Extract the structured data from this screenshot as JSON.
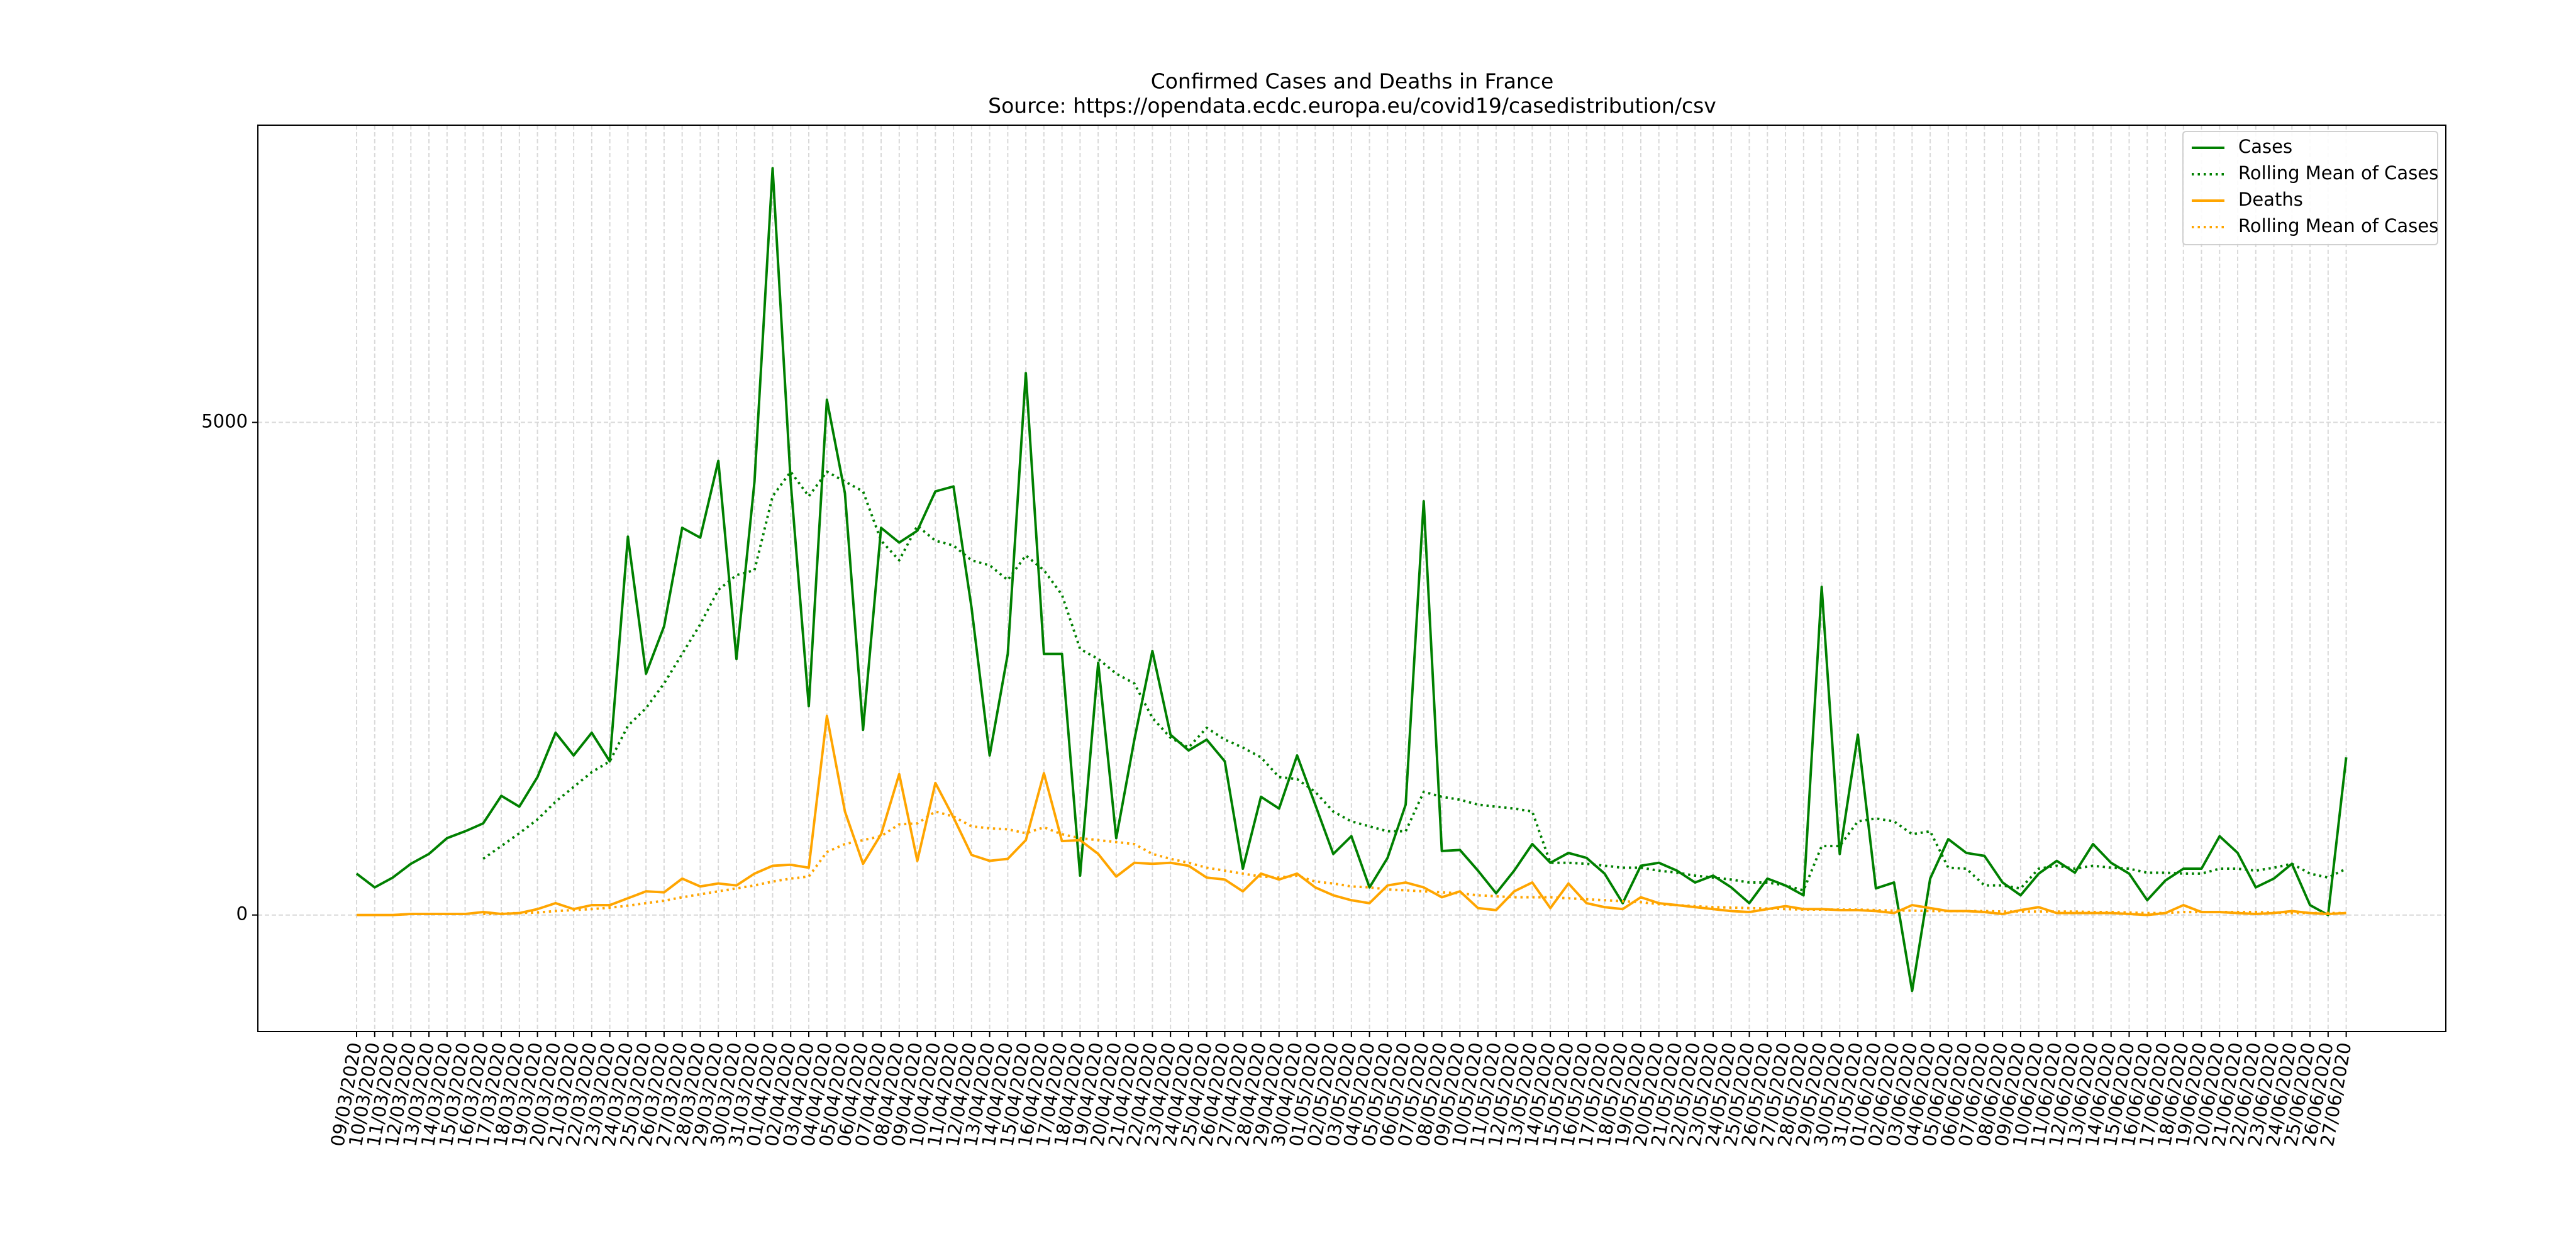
{
  "chart_data": {
    "type": "line",
    "title": "Confirmed Cases and Deaths in France",
    "subtitle": "Source: https://opendata.ecdc.europa.eu/covid19/casedistribution/csv",
    "categories": [
      "09/03/2020",
      "10/03/2020",
      "11/03/2020",
      "12/03/2020",
      "13/03/2020",
      "14/03/2020",
      "15/03/2020",
      "16/03/2020",
      "17/03/2020",
      "18/03/2020",
      "19/03/2020",
      "20/03/2020",
      "21/03/2020",
      "22/03/2020",
      "23/03/2020",
      "24/03/2020",
      "25/03/2020",
      "26/03/2020",
      "27/03/2020",
      "28/03/2020",
      "29/03/2020",
      "30/03/2020",
      "31/03/2020",
      "01/04/2020",
      "02/04/2020",
      "03/04/2020",
      "04/04/2020",
      "05/04/2020",
      "06/04/2020",
      "07/04/2020",
      "08/04/2020",
      "09/04/2020",
      "10/04/2020",
      "11/04/2020",
      "12/04/2020",
      "13/04/2020",
      "14/04/2020",
      "15/04/2020",
      "16/04/2020",
      "17/04/2020",
      "18/04/2020",
      "19/04/2020",
      "20/04/2020",
      "21/04/2020",
      "22/04/2020",
      "23/04/2020",
      "24/04/2020",
      "25/04/2020",
      "26/04/2020",
      "27/04/2020",
      "28/04/2020",
      "29/04/2020",
      "30/04/2020",
      "01/05/2020",
      "02/05/2020",
      "03/05/2020",
      "04/05/2020",
      "05/05/2020",
      "06/05/2020",
      "07/05/2020",
      "08/05/2020",
      "09/05/2020",
      "10/05/2020",
      "11/05/2020",
      "12/05/2020",
      "13/05/2020",
      "14/05/2020",
      "15/05/2020",
      "16/05/2020",
      "17/05/2020",
      "18/05/2020",
      "19/05/2020",
      "20/05/2020",
      "21/05/2020",
      "22/05/2020",
      "23/05/2020",
      "24/05/2020",
      "25/05/2020",
      "26/05/2020",
      "27/05/2020",
      "28/05/2020",
      "29/05/2020",
      "30/05/2020",
      "31/05/2020",
      "01/06/2020",
      "02/06/2020",
      "03/06/2020",
      "04/06/2020",
      "05/06/2020",
      "06/06/2020",
      "07/06/2020",
      "08/06/2020",
      "09/06/2020",
      "10/06/2020",
      "11/06/2020",
      "12/06/2020",
      "13/06/2020",
      "14/06/2020",
      "15/06/2020",
      "16/06/2020",
      "17/06/2020",
      "18/06/2020",
      "19/06/2020",
      "20/06/2020",
      "21/06/2020",
      "22/06/2020",
      "23/06/2020",
      "24/06/2020",
      "25/06/2020",
      "26/06/2020",
      "27/06/2020"
    ],
    "series": [
      {
        "name": "Cases",
        "color": "#008000",
        "linestyle": "solid",
        "values": [
          420,
          280,
          380,
          520,
          620,
          780,
          850,
          930,
          1210,
          1100,
          1400,
          1850,
          1620,
          1850,
          1560,
          3840,
          2450,
          2930,
          3930,
          3830,
          4610,
          2600,
          4400,
          7580,
          4400,
          2120,
          5230,
          4280,
          1880,
          3930,
          3780,
          3900,
          4300,
          4350,
          3120,
          1620,
          2650,
          5500,
          2650,
          2650,
          400,
          2560,
          780,
          1780,
          2680,
          1830,
          1670,
          1780,
          1560,
          470,
          1200,
          1080,
          1620,
          1120,
          620,
          800,
          280,
          580,
          1120,
          4200,
          650,
          660,
          450,
          220,
          450,
          720,
          530,
          630,
          580,
          420,
          120,
          500,
          530,
          450,
          330,
          400,
          280,
          120,
          370,
          300,
          200,
          3330,
          620,
          1830,
          270,
          330,
          -770,
          370,
          770,
          630,
          600,
          330,
          200,
          420,
          550,
          430,
          720,
          530,
          420,
          150,
          350,
          470,
          470,
          800,
          630,
          280,
          370,
          520,
          100,
          0,
          1600
        ]
      },
      {
        "name": "Rolling Mean of Cases",
        "color": "#008000",
        "linestyle": "dotted",
        "values": [
          null,
          null,
          null,
          null,
          null,
          null,
          null,
          570,
          700,
          830,
          970,
          1150,
          1300,
          1450,
          1560,
          1920,
          2100,
          2350,
          2650,
          2950,
          3300,
          3450,
          3500,
          4250,
          4500,
          4250,
          4500,
          4400,
          4300,
          3800,
          3600,
          3950,
          3800,
          3750,
          3600,
          3550,
          3400,
          3650,
          3500,
          3250,
          2700,
          2600,
          2450,
          2350,
          2000,
          1800,
          1700,
          1900,
          1780,
          1700,
          1600,
          1400,
          1380,
          1250,
          1050,
          950,
          900,
          850,
          850,
          1250,
          1200,
          1170,
          1120,
          1100,
          1080,
          1050,
          530,
          530,
          520,
          500,
          480,
          480,
          450,
          430,
          400,
          380,
          360,
          330,
          330,
          300,
          250,
          700,
          700,
          950,
          980,
          950,
          820,
          850,
          480,
          470,
          300,
          300,
          270,
          470,
          500,
          470,
          500,
          480,
          470,
          430,
          430,
          420,
          420,
          470,
          470,
          450,
          480,
          520,
          420,
          380,
          470
        ]
      },
      {
        "name": "Deaths",
        "color": "#ffa500",
        "linestyle": "solid",
        "values": [
          0,
          0,
          0,
          10,
          10,
          10,
          10,
          30,
          10,
          20,
          60,
          120,
          60,
          100,
          100,
          170,
          240,
          230,
          370,
          290,
          320,
          300,
          420,
          500,
          510,
          480,
          2020,
          1050,
          520,
          820,
          1430,
          550,
          1340,
          990,
          610,
          550,
          570,
          760,
          1440,
          750,
          760,
          620,
          390,
          530,
          520,
          530,
          500,
          380,
          360,
          240,
          420,
          360,
          420,
          280,
          200,
          150,
          120,
          300,
          330,
          280,
          180,
          240,
          70,
          50,
          240,
          330,
          70,
          320,
          120,
          80,
          60,
          180,
          120,
          100,
          80,
          60,
          40,
          30,
          60,
          90,
          60,
          60,
          50,
          50,
          40,
          20,
          100,
          70,
          40,
          40,
          30,
          10,
          50,
          80,
          20,
          20,
          20,
          20,
          10,
          0,
          20,
          100,
          30,
          30,
          20,
          10,
          20,
          40,
          20,
          10,
          20
        ]
      },
      {
        "name": "Rolling Mean of Cases",
        "color": "#ffa500",
        "linestyle": "dotted",
        "values": [
          null,
          null,
          null,
          null,
          null,
          null,
          null,
          10,
          15,
          20,
          25,
          40,
          50,
          60,
          75,
          95,
          120,
          145,
          180,
          210,
          240,
          270,
          300,
          340,
          370,
          390,
          640,
          720,
          760,
          800,
          920,
          930,
          1050,
          1000,
          900,
          880,
          870,
          830,
          890,
          820,
          780,
          760,
          740,
          720,
          620,
          570,
          530,
          480,
          450,
          420,
          390,
          380,
          400,
          340,
          320,
          290,
          280,
          260,
          250,
          240,
          230,
          220,
          200,
          190,
          180,
          180,
          180,
          170,
          160,
          150,
          140,
          130,
          110,
          100,
          90,
          80,
          75,
          70,
          65,
          60,
          55,
          55,
          55,
          55,
          50,
          45,
          45,
          40,
          40,
          40,
          40,
          35,
          35,
          35,
          35,
          35,
          30,
          30,
          25,
          20,
          20,
          30,
          30,
          30,
          30,
          30,
          25,
          20,
          20,
          20,
          20
        ]
      }
    ],
    "ylim": [
      -1183,
      8017
    ],
    "yticks": [
      0,
      5000
    ],
    "grid": true,
    "legend": "upper right"
  }
}
